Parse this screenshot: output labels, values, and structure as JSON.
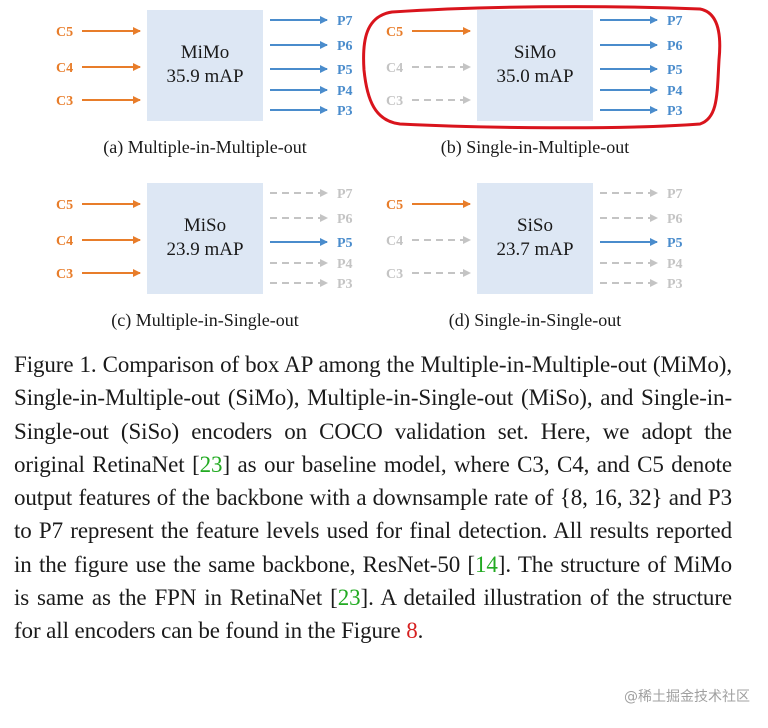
{
  "panels": [
    {
      "id": "a",
      "name": "MiMo",
      "map": "35.9 mAP",
      "caption": "(a) Multiple-in-Multiple-out",
      "inputs": [
        {
          "label": "C5",
          "active": true
        },
        {
          "label": "C4",
          "active": true
        },
        {
          "label": "C3",
          "active": true
        }
      ],
      "outputs": [
        {
          "label": "P7",
          "active": true
        },
        {
          "label": "P6",
          "active": true
        },
        {
          "label": "P5",
          "active": true
        },
        {
          "label": "P4",
          "active": true
        },
        {
          "label": "P3",
          "active": true
        }
      ],
      "highlighted": false
    },
    {
      "id": "b",
      "name": "SiMo",
      "map": "35.0 mAP",
      "caption": "(b) Single-in-Multiple-out",
      "inputs": [
        {
          "label": "C5",
          "active": true
        },
        {
          "label": "C4",
          "active": false
        },
        {
          "label": "C3",
          "active": false
        }
      ],
      "outputs": [
        {
          "label": "P7",
          "active": true
        },
        {
          "label": "P6",
          "active": true
        },
        {
          "label": "P5",
          "active": true
        },
        {
          "label": "P4",
          "active": true
        },
        {
          "label": "P3",
          "active": true
        }
      ],
      "highlighted": true
    },
    {
      "id": "c",
      "name": "MiSo",
      "map": "23.9 mAP",
      "caption": "(c) Multiple-in-Single-out",
      "inputs": [
        {
          "label": "C5",
          "active": true
        },
        {
          "label": "C4",
          "active": true
        },
        {
          "label": "C3",
          "active": true
        }
      ],
      "outputs": [
        {
          "label": "P7",
          "active": false
        },
        {
          "label": "P6",
          "active": false
        },
        {
          "label": "P5",
          "active": true
        },
        {
          "label": "P4",
          "active": false
        },
        {
          "label": "P3",
          "active": false
        }
      ],
      "highlighted": false
    },
    {
      "id": "d",
      "name": "SiSo",
      "map": "23.7 mAP",
      "caption": "(d) Single-in-Single-out",
      "inputs": [
        {
          "label": "C5",
          "active": true
        },
        {
          "label": "C4",
          "active": false
        },
        {
          "label": "C3",
          "active": false
        }
      ],
      "outputs": [
        {
          "label": "P7",
          "active": false
        },
        {
          "label": "P6",
          "active": false
        },
        {
          "label": "P5",
          "active": true
        },
        {
          "label": "P4",
          "active": false
        },
        {
          "label": "P3",
          "active": false
        }
      ],
      "highlighted": false
    }
  ],
  "colors": {
    "input_active": "#e87d2a",
    "output_active": "#4a8ccc",
    "inactive": "#c4c4c4",
    "box_fill": "#dde7f4",
    "highlight": "#d9141c",
    "link_green": "#22aa22",
    "link_red": "#d62020"
  },
  "caption": {
    "part1": "Figure 1. Comparison of box AP among the Multiple-in-Multiple-out (MiMo), Single-in-Multiple-out (SiMo), Multiple-in-Single-out (MiSo), and Single-in-Single-out (SiSo) encoders on COCO validation set. Here, we adopt the original RetinaNet [",
    "ref1": "23",
    "part2": "] as our baseline model, where C3, C4, and C5 denote output features of the backbone with a downsample rate of {8, 16, 32} and P3 to P7 represent the feature levels used for final detection. All results reported in the figure use the same backbone, ResNet-50 [",
    "ref2": "14",
    "part3": "]. The structure of MiMo is same as the FPN in RetinaNet [",
    "ref3": "23",
    "part4": "]. A detailed illustration of the structure for all encoders can be found in the Figure ",
    "ref4": "8",
    "part5": "."
  },
  "watermark": "@稀土掘金技术社区"
}
